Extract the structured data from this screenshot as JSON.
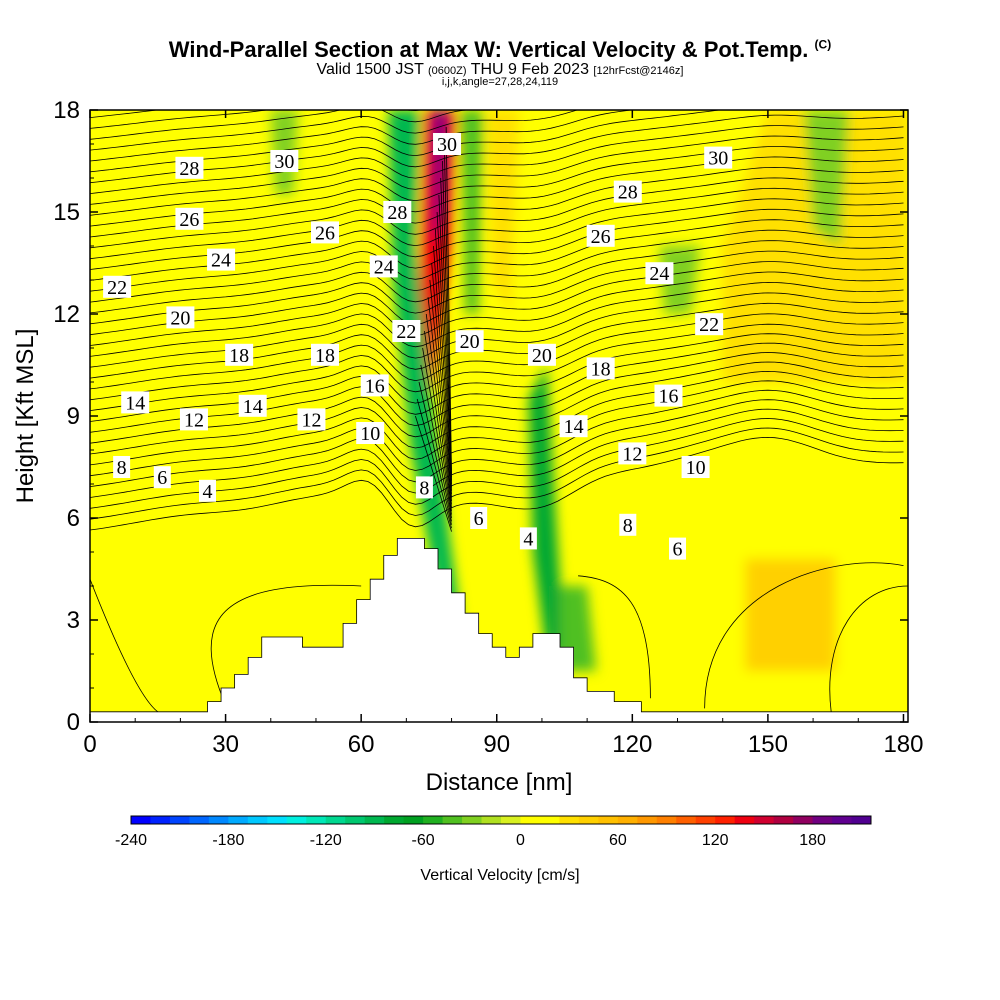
{
  "header": {
    "title": "Wind-Parallel Section at Max W: Vertical Velocity & Pot.Temp.",
    "copyright": "(C)",
    "valid_prefix": "Valid 1500 JST",
    "valid_utc": "(0600Z)",
    "valid_date": "THU 9 Feb 2023",
    "forecast": "[12hrFcst@2146z]",
    "indices": "i,j,k,angle=27,28,24,119"
  },
  "chart_data": {
    "type": "heatmap",
    "xlabel": "Distance [nm]",
    "ylabel": "Height [Kft MSL]",
    "xlim": [
      0,
      181
    ],
    "ylim": [
      0,
      18
    ],
    "x_ticks": [
      0,
      30,
      60,
      90,
      120,
      150,
      180
    ],
    "y_ticks": [
      0,
      3,
      6,
      9,
      12,
      15,
      18
    ],
    "grid": false,
    "colorbar": {
      "label": "Vertical Velocity [cm/s]",
      "ticks": [
        -240,
        -180,
        -120,
        -60,
        0,
        60,
        120,
        180
      ],
      "min": -240,
      "max": 216,
      "step": 12,
      "colors": [
        "#0000ff",
        "#0022ff",
        "#0044ff",
        "#0066ff",
        "#0088ff",
        "#00aaff",
        "#00c8ff",
        "#00e0ff",
        "#00f0e0",
        "#00e8b8",
        "#00d890",
        "#00c870",
        "#00b850",
        "#00a830",
        "#00a020",
        "#20b020",
        "#50c020",
        "#80d020",
        "#b0e020",
        "#d8f020",
        "#ffff00",
        "#ffff00",
        "#ffe000",
        "#ffd000",
        "#ffc000",
        "#ffb000",
        "#ff9800",
        "#ff8000",
        "#ff6000",
        "#ff4000",
        "#ff2000",
        "#ee0010",
        "#d00030",
        "#b00040",
        "#900060",
        "#700080",
        "#600090",
        "#500090"
      ]
    },
    "vertical_velocity_regions": [
      {
        "label": "broad ascent, lower layer",
        "value": 12
      },
      {
        "label": "upwind plume updraft",
        "value": 140
      },
      {
        "label": "lee downdraft band",
        "value": -90
      },
      {
        "label": "secondary downdraft band",
        "value": -75
      },
      {
        "label": "upper downdraft patch",
        "value": -45
      },
      {
        "label": "downstream updraft column",
        "value": 50
      }
    ],
    "theta_contour_labels": [
      {
        "text": "30",
        "x": 43,
        "y": 16.5
      },
      {
        "text": "30",
        "x": 79,
        "y": 17.0
      },
      {
        "text": "30",
        "x": 139,
        "y": 16.6
      },
      {
        "text": "28",
        "x": 22,
        "y": 16.3
      },
      {
        "text": "28",
        "x": 68,
        "y": 15.0
      },
      {
        "text": "28",
        "x": 119,
        "y": 15.6
      },
      {
        "text": "26",
        "x": 22,
        "y": 14.8
      },
      {
        "text": "26",
        "x": 52,
        "y": 14.4
      },
      {
        "text": "26",
        "x": 113,
        "y": 14.3
      },
      {
        "text": "24",
        "x": 29,
        "y": 13.6
      },
      {
        "text": "24",
        "x": 65,
        "y": 13.4
      },
      {
        "text": "24",
        "x": 126,
        "y": 13.2
      },
      {
        "text": "22",
        "x": 6,
        "y": 12.8
      },
      {
        "text": "22",
        "x": 70,
        "y": 11.5
      },
      {
        "text": "22",
        "x": 137,
        "y": 11.7
      },
      {
        "text": "20",
        "x": 20,
        "y": 11.9
      },
      {
        "text": "20",
        "x": 84,
        "y": 11.2
      },
      {
        "text": "20",
        "x": 100,
        "y": 10.8
      },
      {
        "text": "18",
        "x": 33,
        "y": 10.8
      },
      {
        "text": "18",
        "x": 52,
        "y": 10.8
      },
      {
        "text": "18",
        "x": 113,
        "y": 10.4
      },
      {
        "text": "16",
        "x": 63,
        "y": 9.9
      },
      {
        "text": "16",
        "x": 128,
        "y": 9.6
      },
      {
        "text": "14",
        "x": 10,
        "y": 9.4
      },
      {
        "text": "14",
        "x": 36,
        "y": 9.3
      },
      {
        "text": "14",
        "x": 107,
        "y": 8.7
      },
      {
        "text": "12",
        "x": 23,
        "y": 8.9
      },
      {
        "text": "12",
        "x": 49,
        "y": 8.9
      },
      {
        "text": "12",
        "x": 120,
        "y": 7.9
      },
      {
        "text": "10",
        "x": 62,
        "y": 8.5
      },
      {
        "text": "10",
        "x": 134,
        "y": 7.5
      },
      {
        "text": "8",
        "x": 7,
        "y": 7.5
      },
      {
        "text": "8",
        "x": 74,
        "y": 6.9
      },
      {
        "text": "8",
        "x": 119,
        "y": 5.8
      },
      {
        "text": "6",
        "x": 16,
        "y": 7.2
      },
      {
        "text": "6",
        "x": 86,
        "y": 6.0
      },
      {
        "text": "6",
        "x": 130,
        "y": 5.1
      },
      {
        "text": "4",
        "x": 26,
        "y": 6.8
      },
      {
        "text": "4",
        "x": 97,
        "y": 5.4
      }
    ]
  }
}
